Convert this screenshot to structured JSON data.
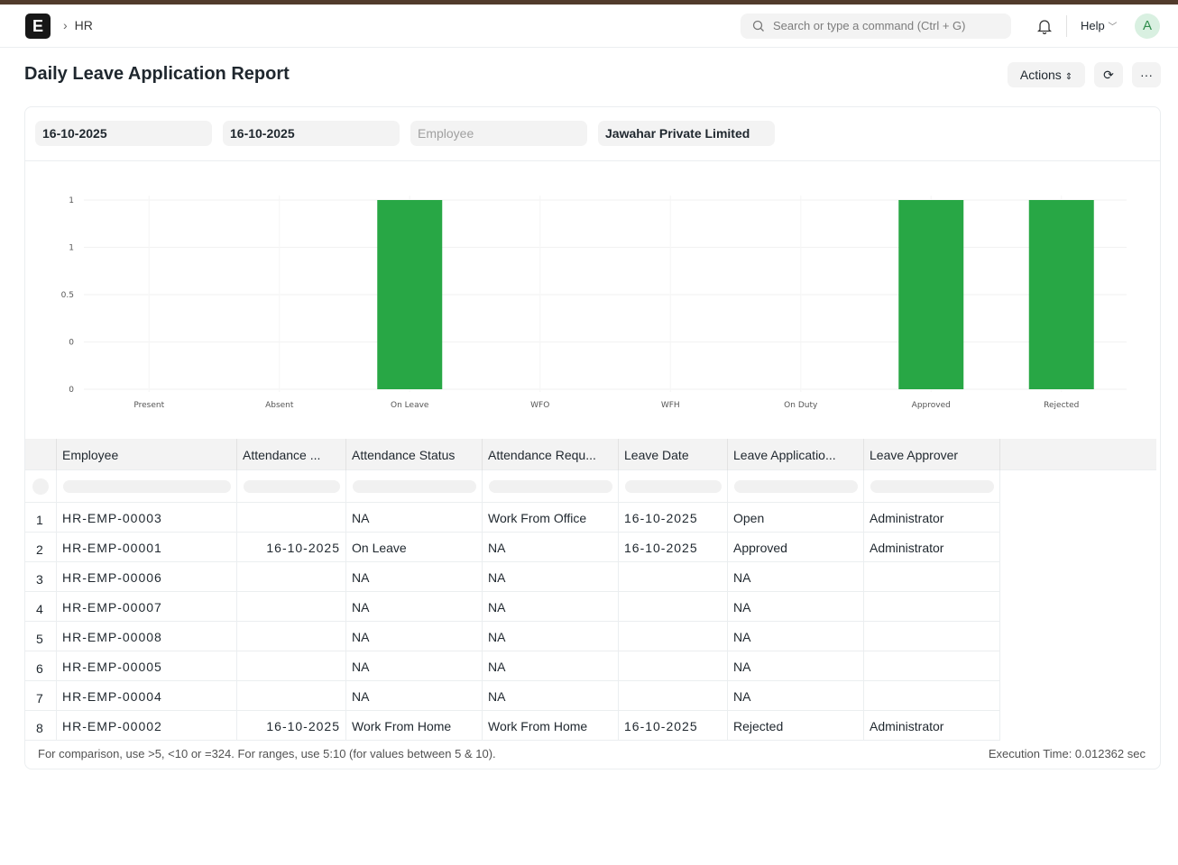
{
  "nav": {
    "logo": "E",
    "breadcrumb": "HR",
    "search_placeholder": "Search or type a command (Ctrl + G)",
    "help": "Help",
    "avatar": "A"
  },
  "page": {
    "title": "Daily Leave Application Report",
    "actions": "Actions",
    "refresh_icon": "refresh-icon",
    "more_icon": "more-icon"
  },
  "filters": {
    "from_date": "16-10-2025",
    "to_date": "16-10-2025",
    "employee_placeholder": "Employee",
    "company": "Jawahar Private Limited"
  },
  "chart_data": {
    "type": "bar",
    "categories": [
      "Present",
      "Absent",
      "On Leave",
      "WFO",
      "WFH",
      "On Duty",
      "Approved",
      "Rejected"
    ],
    "values": [
      0,
      0,
      1,
      0,
      0,
      0,
      1,
      1
    ],
    "y_tick_labels": [
      "1",
      "1",
      "0.5",
      "0",
      "0"
    ],
    "ylim": [
      0,
      1
    ],
    "grid": true,
    "color": "#28a745"
  },
  "table": {
    "columns": [
      "Employee",
      "Attendance ...",
      "Attendance Status",
      "Attendance Requ...",
      "Leave Date",
      "Leave Applicatio...",
      "Leave Approver"
    ],
    "rows": [
      [
        "1",
        "HR-EMP-00003",
        "",
        "NA",
        "Work From Office",
        "16-10-2025",
        "Open",
        "Administrator"
      ],
      [
        "2",
        "HR-EMP-00001",
        "16-10-2025",
        "On Leave",
        "NA",
        "16-10-2025",
        "Approved",
        "Administrator"
      ],
      [
        "3",
        "HR-EMP-00006",
        "",
        "NA",
        "NA",
        "",
        "NA",
        ""
      ],
      [
        "4",
        "HR-EMP-00007",
        "",
        "NA",
        "NA",
        "",
        "NA",
        ""
      ],
      [
        "5",
        "HR-EMP-00008",
        "",
        "NA",
        "NA",
        "",
        "NA",
        ""
      ],
      [
        "6",
        "HR-EMP-00005",
        "",
        "NA",
        "NA",
        "",
        "NA",
        ""
      ],
      [
        "7",
        "HR-EMP-00004",
        "",
        "NA",
        "NA",
        "",
        "NA",
        ""
      ],
      [
        "8",
        "HR-EMP-00002",
        "16-10-2025",
        "Work From Home",
        "Work From Home",
        "16-10-2025",
        "Rejected",
        "Administrator"
      ]
    ]
  },
  "footer": {
    "hint": "For comparison, use >5, <10 or =324. For ranges, use 5:10 (for values between 5 & 10).",
    "execution": "Execution Time: 0.012362 sec"
  }
}
